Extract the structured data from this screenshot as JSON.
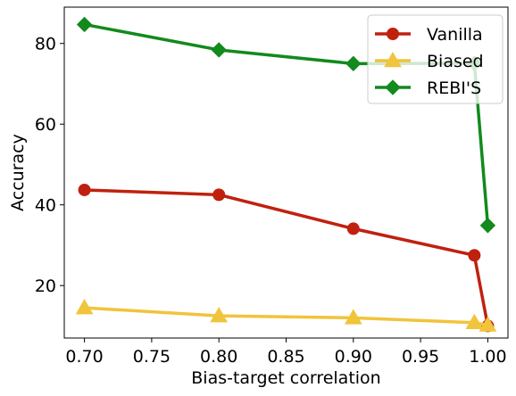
{
  "chart_data": {
    "type": "line",
    "xlabel": "Bias-target correlation",
    "ylabel": "Accuracy",
    "xlim": [
      0.685,
      1.015
    ],
    "ylim": [
      7,
      89
    ],
    "xticks": [
      0.7,
      0.75,
      0.8,
      0.85,
      0.9,
      0.95,
      1.0
    ],
    "xtick_labels": [
      "0.70",
      "0.75",
      "0.80",
      "0.85",
      "0.90",
      "0.95",
      "1.00"
    ],
    "yticks": [
      20,
      40,
      60,
      80
    ],
    "ytick_labels": [
      "20",
      "40",
      "60",
      "80"
    ],
    "grid": false,
    "legend_position": "top-right",
    "x": [
      0.7,
      0.8,
      0.9,
      0.99,
      1.0
    ],
    "series": [
      {
        "name": "Vanilla",
        "color": "#c0210f",
        "marker": "circle",
        "values": [
          43.7,
          42.5,
          34.1,
          27.5,
          10.0
        ]
      },
      {
        "name": "Biased",
        "color": "#f0c43b",
        "marker": "triangle",
        "values": [
          14.5,
          12.5,
          12.0,
          10.8,
          10.2
        ]
      },
      {
        "name": "REBI'S",
        "color": "#128a1d",
        "marker": "diamond",
        "values": [
          84.7,
          78.4,
          75.0,
          75.1,
          34.9
        ]
      }
    ]
  }
}
